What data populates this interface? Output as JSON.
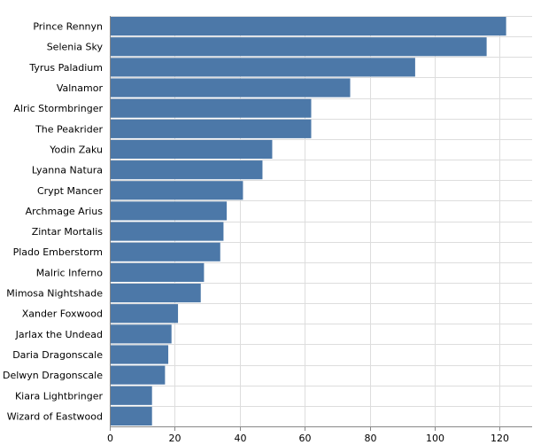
{
  "chart_data": {
    "type": "bar",
    "orientation": "horizontal",
    "title": "",
    "xlabel": "",
    "ylabel": "",
    "bar_color": "#4c78a8",
    "grid": true,
    "xlim": [
      0,
      130
    ],
    "x_ticks": [
      0,
      20,
      40,
      60,
      80,
      100,
      120
    ],
    "categories": [
      "Prince Rennyn",
      "Selenia Sky",
      "Tyrus Paladium",
      "Valnamor",
      "Alric Stormbringer",
      "The Peakrider",
      "Yodin Zaku",
      "Lyanna Natura",
      "Crypt Mancer",
      "Archmage Arius",
      "Zintar Mortalis",
      "Plado Emberstorm",
      "Malric Inferno",
      "Mimosa Nightshade",
      "Xander Foxwood",
      "Jarlax the Undead",
      "Daria Dragonscale",
      "Delwyn Dragonscale",
      "Kiara Lightbringer",
      "Wizard of Eastwood"
    ],
    "values": [
      122,
      116,
      94,
      74,
      62,
      62,
      50,
      47,
      41,
      36,
      35,
      34,
      29,
      28,
      21,
      19,
      18,
      17,
      13,
      13
    ]
  }
}
